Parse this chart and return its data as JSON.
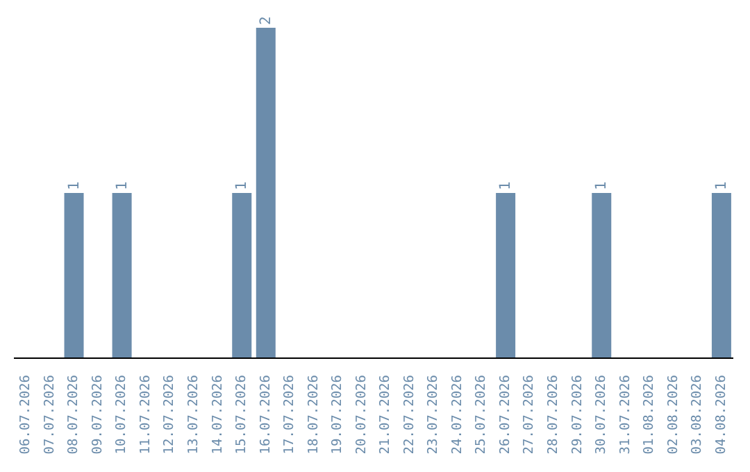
{
  "chart_data": {
    "type": "bar",
    "categories": [
      "06.07.2026",
      "07.07.2026",
      "08.07.2026",
      "09.07.2026",
      "10.07.2026",
      "11.07.2026",
      "12.07.2026",
      "13.07.2026",
      "14.07.2026",
      "15.07.2026",
      "16.07.2026",
      "17.07.2026",
      "18.07.2026",
      "19.07.2026",
      "20.07.2026",
      "21.07.2026",
      "22.07.2026",
      "23.07.2026",
      "24.07.2026",
      "25.07.2026",
      "26.07.2026",
      "27.07.2026",
      "28.07.2026",
      "29.07.2026",
      "30.07.2026",
      "31.07.2026",
      "01.08.2026",
      "02.08.2026",
      "03.08.2026",
      "04.08.2026"
    ],
    "values": [
      0,
      0,
      1,
      0,
      1,
      0,
      0,
      0,
      0,
      1,
      2,
      0,
      0,
      0,
      0,
      0,
      0,
      0,
      0,
      0,
      1,
      0,
      0,
      0,
      1,
      0,
      0,
      0,
      0,
      1
    ],
    "value_labels": [
      null,
      null,
      "1",
      null,
      "1",
      null,
      null,
      null,
      null,
      "1",
      "2",
      null,
      null,
      null,
      null,
      null,
      null,
      null,
      null,
      null,
      "1",
      null,
      null,
      null,
      "1",
      null,
      null,
      null,
      null,
      "1"
    ],
    "color": "#6b8cab",
    "tick_labels": "x",
    "grid": false
  }
}
